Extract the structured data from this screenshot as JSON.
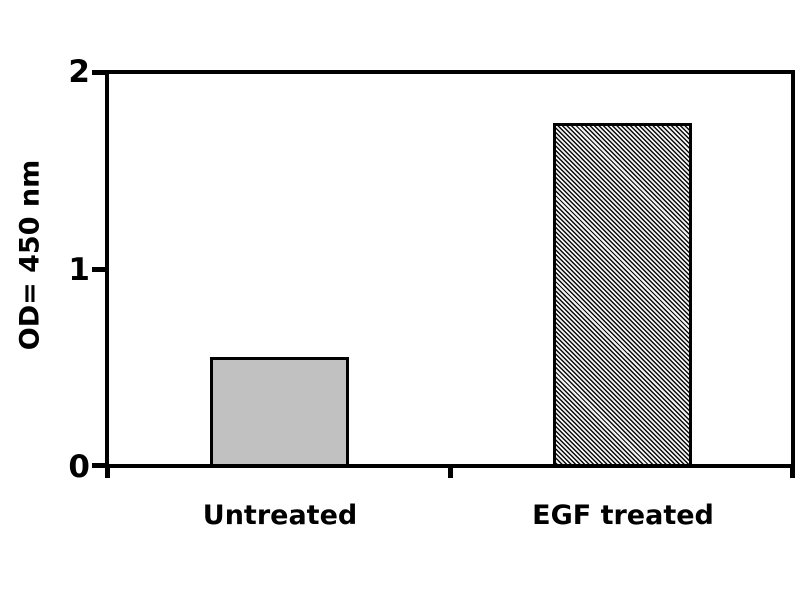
{
  "chart_data": {
    "type": "bar",
    "title": "",
    "categories": [
      "Untreated",
      "EGF treated"
    ],
    "values": [
      0.55,
      1.75
    ],
    "xlabel": "",
    "ylabel": "OD= 450 nm",
    "ylim": [
      0,
      2
    ],
    "yticks": [
      "0",
      "1",
      "2"
    ],
    "grid": false,
    "legend": false,
    "background_color": "#ffffff",
    "axis_color": "#000000",
    "bars": [
      {
        "category": "Untreated",
        "value": 0.55,
        "fill": "#c1c1c1",
        "pattern": "solid",
        "border_color": "#000000"
      },
      {
        "category": "EGF treated",
        "value": 1.75,
        "fill": "#ffffff",
        "pattern": "diagonal-hatch",
        "border_color": "#000000"
      }
    ]
  }
}
